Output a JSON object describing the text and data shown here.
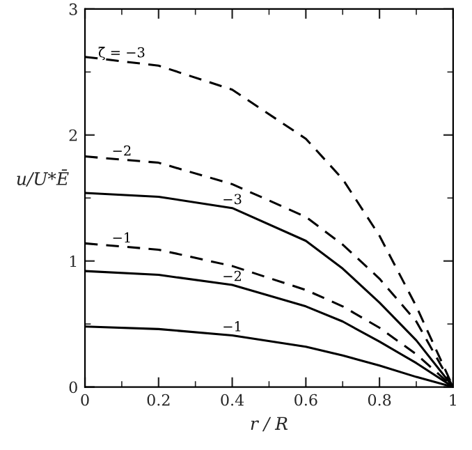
{
  "chart_data": {
    "type": "line",
    "xlabel": "r / R",
    "ylabel": "u/U*Ē",
    "x": [
      0,
      0.2,
      0.4,
      0.6,
      0.7,
      0.8,
      0.9,
      1
    ],
    "xlim": [
      0,
      1
    ],
    "xticks": [
      0,
      0.2,
      0.4,
      0.6,
      0.8,
      1
    ],
    "ylim": [
      0,
      3
    ],
    "yticks": [
      0,
      1,
      2,
      3
    ],
    "grid": false,
    "marker": "none",
    "series": [
      {
        "name": "ζ̄ = −3",
        "color": "#000000",
        "line_style": "dashed",
        "values": [
          2.62,
          2.55,
          2.36,
          1.97,
          1.65,
          1.2,
          0.64,
          0
        ]
      },
      {
        "name": "−2",
        "color": "#000000",
        "line_style": "dashed",
        "values": [
          1.83,
          1.78,
          1.61,
          1.35,
          1.13,
          0.86,
          0.52,
          0
        ]
      },
      {
        "name": "−3",
        "color": "#000000",
        "line_style": "solid",
        "values": [
          1.54,
          1.51,
          1.42,
          1.16,
          0.94,
          0.67,
          0.37,
          0
        ]
      },
      {
        "name": "−1",
        "color": "#000000",
        "line_style": "dashed",
        "values": [
          1.14,
          1.09,
          0.96,
          0.77,
          0.64,
          0.47,
          0.26,
          0
        ]
      },
      {
        "name": "−2",
        "color": "#000000",
        "line_style": "solid",
        "values": [
          0.92,
          0.89,
          0.81,
          0.64,
          0.52,
          0.36,
          0.19,
          0
        ]
      },
      {
        "name": "−1",
        "color": "#000000",
        "line_style": "solid",
        "values": [
          0.48,
          0.46,
          0.41,
          0.32,
          0.25,
          0.17,
          0.08,
          0
        ]
      }
    ]
  }
}
